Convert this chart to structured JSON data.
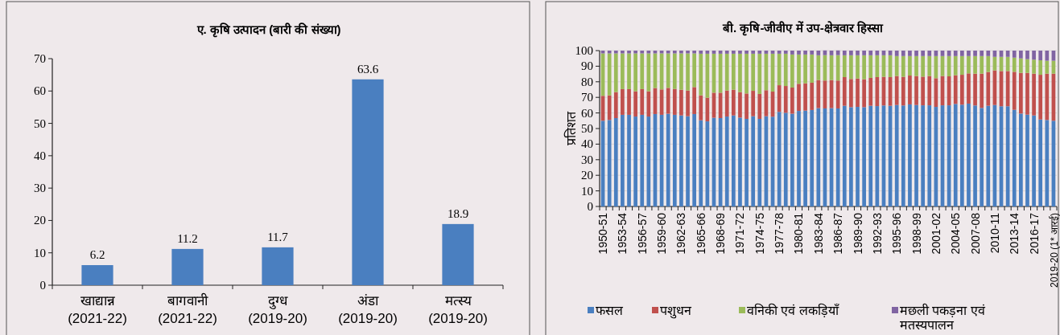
{
  "chart_data": [
    {
      "type": "bar",
      "title": "ए. कृषि उत्पादन (बारी की संख्या)",
      "categories": [
        "खाद्यान्न\n(2021-22)",
        "बागवानी\n(2021-22)",
        "दुग्ध\n(2019-20)",
        "अंडा\n(2019-20)",
        "मत्स्य\n(2019-20)"
      ],
      "values": [
        6.2,
        11.2,
        11.7,
        63.6,
        18.9
      ],
      "color": "#4a7fc0",
      "ylim": [
        0,
        70
      ],
      "yticks": [
        0,
        10,
        20,
        30,
        40,
        50,
        60,
        70
      ],
      "data_labels": true
    },
    {
      "type": "bar",
      "title": "बी. कृषि-जीवीए में उप-क्षेत्रवार हिस्सा",
      "ylabel": "प्रतिशत",
      "stacked": true,
      "grid": "y",
      "legend": "bottom",
      "ylim": [
        0,
        100
      ],
      "yticks": [
        0,
        10,
        20,
        30,
        40,
        50,
        60,
        70,
        80,
        90,
        100
      ],
      "categories": [
        "1950-51",
        null,
        null,
        "1953-54",
        null,
        null,
        "1956-57",
        null,
        null,
        "1959-60",
        null,
        null,
        "1962-63",
        null,
        null,
        "1965-66",
        null,
        null,
        "1968-69",
        null,
        null,
        "1971-72",
        null,
        null,
        "1974-75",
        null,
        null,
        "1977-78",
        null,
        null,
        "1980-81",
        null,
        null,
        "1983-84",
        null,
        null,
        "1986-87",
        null,
        null,
        "1989-90",
        null,
        null,
        "1992-93",
        null,
        null,
        "1995-96",
        null,
        null,
        "1998-99",
        null,
        null,
        "2001-02",
        null,
        null,
        "2004-05",
        null,
        null,
        "2007-08",
        null,
        null,
        "2010-11",
        null,
        null,
        "2013-14",
        null,
        null,
        "2016-17",
        null,
        null,
        "2019-20 (1* आरई)"
      ],
      "series": [
        {
          "name": "फसल",
          "color": "#4a7fc0",
          "values": [
            55.0,
            55.5,
            56.7,
            58.8,
            58.8,
            57.7,
            58.8,
            57.7,
            59.3,
            58.8,
            59.5,
            58.8,
            58.4,
            57.9,
            59.3,
            55.3,
            54.6,
            56.9,
            56.7,
            57.7,
            58.4,
            57.0,
            56.2,
            57.9,
            56.2,
            57.9,
            57.6,
            60.7,
            60.1,
            59.5,
            61.3,
            61.5,
            61.9,
            63.1,
            62.9,
            63.1,
            62.9,
            64.6,
            63.7,
            63.9,
            63.7,
            64.6,
            64.4,
            64.8,
            64.6,
            65.1,
            64.8,
            65.5,
            65.1,
            64.9,
            64.9,
            63.9,
            64.9,
            64.9,
            65.8,
            65.3,
            66.0,
            64.8,
            63.2,
            64.6,
            65.1,
            64.3,
            64.3,
            62.0,
            59.6,
            58.9,
            58.4,
            55.8,
            55.5,
            55.0
          ]
        },
        {
          "name": "पशुधन",
          "color": "#c0504d",
          "values": [
            16.0,
            15.8,
            16.7,
            16.5,
            16.5,
            16.2,
            16.5,
            16.2,
            16.7,
            16.3,
            16.6,
            16.6,
            16.5,
            16.5,
            17.3,
            16.0,
            15.2,
            16.1,
            16.3,
            16.7,
            16.5,
            16.4,
            16.3,
            16.3,
            16.0,
            16.7,
            16.1,
            17.1,
            17.2,
            16.8,
            17.4,
            17.5,
            17.5,
            18.0,
            17.9,
            18.0,
            17.9,
            18.4,
            18.1,
            18.2,
            17.9,
            17.9,
            18.6,
            18.4,
            18.4,
            18.6,
            18.4,
            18.5,
            18.6,
            18.4,
            18.8,
            18.4,
            18.8,
            18.6,
            18.4,
            19.2,
            19.4,
            20.4,
            22.0,
            21.7,
            22.2,
            22.6,
            22.6,
            24.4,
            26.1,
            26.8,
            26.8,
            28.7,
            29.7,
            30.2
          ]
        },
        {
          "name": "वनिकी एवं लकड़ियाँ",
          "color": "#9bbb59",
          "values": [
            27.2,
            26.9,
            24.8,
            22.9,
            22.9,
            24.3,
            22.9,
            24.3,
            22.2,
            23.1,
            22.1,
            22.8,
            23.3,
            23.8,
            21.6,
            26.7,
            28.2,
            25.0,
            25.0,
            23.6,
            23.1,
            24.6,
            25.5,
            23.8,
            25.8,
            23.4,
            24.3,
            20.2,
            20.7,
            21.2,
            18.8,
            18.5,
            18.1,
            15.9,
            16.3,
            15.9,
            16.3,
            14.0,
            15.2,
            14.9,
            15.4,
            14.5,
            14.0,
            13.8,
            14.0,
            12.8,
            13.3,
            12.5,
            12.8,
            13.2,
            12.8,
            14.2,
            12.8,
            13.0,
            12.3,
            12.0,
            11.1,
            11.3,
            11.3,
            10.2,
            8.7,
            9.1,
            9.1,
            9.1,
            9.3,
            8.8,
            9.0,
            9.3,
            8.3,
            8.3
          ]
        },
        {
          "name": "मछली पकड़ना एवं मतस्यपालन",
          "color": "#8064a2",
          "values": [
            1.8,
            1.8,
            1.8,
            1.8,
            1.8,
            1.8,
            1.8,
            1.8,
            1.8,
            1.8,
            1.8,
            1.8,
            1.8,
            1.8,
            1.8,
            2.0,
            2.0,
            2.0,
            2.0,
            2.0,
            2.0,
            2.0,
            2.0,
            2.0,
            2.0,
            2.0,
            2.0,
            2.0,
            2.0,
            2.5,
            2.5,
            2.5,
            2.5,
            3.0,
            3.0,
            3.0,
            3.0,
            3.0,
            3.0,
            3.0,
            3.0,
            3.0,
            3.0,
            3.0,
            3.0,
            3.5,
            3.5,
            3.5,
            3.5,
            3.5,
            3.5,
            3.5,
            3.5,
            3.5,
            3.5,
            3.5,
            3.5,
            3.5,
            3.5,
            3.5,
            4.0,
            4.0,
            4.0,
            4.5,
            5.0,
            5.5,
            5.8,
            6.2,
            6.5,
            6.5
          ]
        }
      ]
    }
  ]
}
